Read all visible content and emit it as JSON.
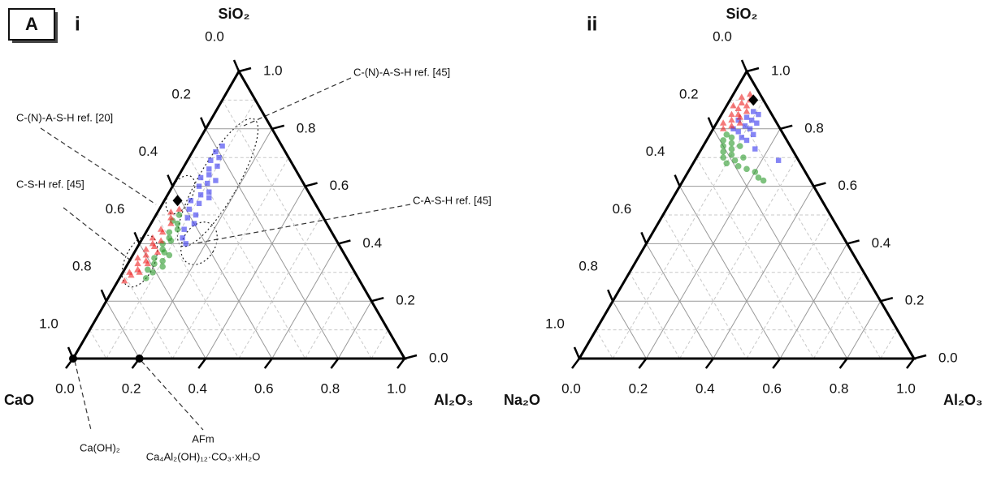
{
  "panel": "A",
  "chart_data": [
    {
      "type": "ternary",
      "label": "i",
      "top_label": "SiO₂",
      "left_label": "CaO",
      "right_label": "Al₂O₃",
      "left_ticks": [
        {
          "value": 0,
          "label": "0.0"
        },
        0.2,
        0.4,
        0.6,
        0.8,
        {
          "value": 1,
          "label": "1.0"
        }
      ],
      "right_ticks": [
        {
          "value": 0,
          "label": "0.0"
        },
        0.2,
        0.4,
        0.6,
        0.8,
        {
          "value": 1,
          "label": "1.0"
        }
      ],
      "bottom_ticks": [
        {
          "value": 0,
          "label": "0.0"
        },
        0.2,
        0.4,
        0.6,
        0.8,
        {
          "value": 1,
          "label": "1.0"
        }
      ],
      "grid": true,
      "annotations": [
        "C-(N)-A-S-H ref. [45]",
        "C-(N)-A-S-H ref. [20]",
        "C-S-H ref. [45]",
        "C-A-S-H ref. [45]",
        "Ca(OH)₂",
        "AFm",
        "Ca₄Al₂(OH)₁₂·CO₃·xH₂O"
      ],
      "series": [
        {
          "color": "#3333ee",
          "marker": "square",
          "values": [
            [
              0.4,
              0.14
            ],
            [
              0.42,
              0.12
            ],
            [
              0.45,
              0.11
            ],
            [
              0.47,
              0.13
            ],
            [
              0.49,
              0.1
            ],
            [
              0.5,
              0.12
            ],
            [
              0.52,
              0.09
            ],
            [
              0.54,
              0.11
            ],
            [
              0.55,
              0.08
            ],
            [
              0.57,
              0.1
            ],
            [
              0.58,
              0.12
            ],
            [
              0.6,
              0.08
            ],
            [
              0.61,
              0.1
            ],
            [
              0.63,
              0.07
            ],
            [
              0.64,
              0.09
            ],
            [
              0.66,
              0.08
            ],
            [
              0.67,
              0.1
            ],
            [
              0.69,
              0.07
            ],
            [
              0.7,
              0.09
            ],
            [
              0.72,
              0.07
            ],
            [
              0.74,
              0.08
            ],
            [
              0.62,
              0.12
            ],
            [
              0.56,
              0.13
            ]
          ]
        },
        {
          "color": "#2a9a2a",
          "marker": "circle",
          "values": [
            [
              0.28,
              0.08
            ],
            [
              0.3,
              0.09
            ],
            [
              0.31,
              0.07
            ],
            [
              0.33,
              0.08
            ],
            [
              0.34,
              0.1
            ],
            [
              0.35,
              0.07
            ],
            [
              0.37,
              0.09
            ],
            [
              0.38,
              0.08
            ],
            [
              0.4,
              0.07
            ],
            [
              0.41,
              0.09
            ],
            [
              0.42,
              0.08
            ],
            [
              0.44,
              0.07
            ],
            [
              0.45,
              0.09
            ],
            [
              0.47,
              0.08
            ],
            [
              0.48,
              0.06
            ],
            [
              0.5,
              0.07
            ],
            [
              0.36,
              0.11
            ],
            [
              0.32,
              0.11
            ]
          ]
        },
        {
          "color": "#ee2222",
          "marker": "triangle",
          "values": [
            [
              0.27,
              0.02
            ],
            [
              0.29,
              0.03
            ],
            [
              0.3,
              0.02
            ],
            [
              0.31,
              0.04
            ],
            [
              0.33,
              0.03
            ],
            [
              0.34,
              0.05
            ],
            [
              0.35,
              0.02
            ],
            [
              0.36,
              0.04
            ],
            [
              0.38,
              0.03
            ],
            [
              0.39,
              0.05
            ],
            [
              0.4,
              0.04
            ],
            [
              0.41,
              0.06
            ],
            [
              0.42,
              0.03
            ],
            [
              0.44,
              0.05
            ],
            [
              0.45,
              0.04
            ],
            [
              0.47,
              0.06
            ],
            [
              0.49,
              0.05
            ],
            [
              0.51,
              0.04
            ],
            [
              0.52,
              0.06
            ],
            [
              0.3,
              0.05
            ],
            [
              0.33,
              0.06
            ],
            [
              0.37,
              0.07
            ]
          ]
        },
        {
          "color": "#000000",
          "marker": "diamond",
          "values": [
            [
              0.55,
              0.04
            ]
          ]
        },
        {
          "color": "#000000",
          "marker": "dot",
          "values": [
            [
              0,
              0
            ],
            [
              0,
              0.2
            ]
          ]
        }
      ]
    },
    {
      "type": "ternary",
      "label": "ii",
      "top_label": "SiO₂",
      "left_label": "Na₂O",
      "right_label": "Al₂O₃",
      "left_ticks": [
        {
          "value": 0,
          "label": "0.0"
        },
        0.2,
        0.4,
        0.6,
        0.8,
        {
          "value": 1,
          "label": "1.0"
        }
      ],
      "right_ticks": [
        {
          "value": 0,
          "label": "0.0"
        },
        0.2,
        0.4,
        0.6,
        0.8,
        {
          "value": 1,
          "label": "1.0"
        }
      ],
      "bottom_ticks": [
        {
          "value": 0,
          "label": "0.0"
        },
        0.2,
        0.4,
        0.6,
        0.8,
        {
          "value": 1,
          "label": "1.0"
        }
      ],
      "grid": true,
      "series": [
        {
          "color": "#2a9a2a",
          "marker": "circle",
          "values": [
            [
              0.78,
              0.05
            ],
            [
              0.77,
              0.07
            ],
            [
              0.76,
              0.05
            ],
            [
              0.75,
              0.08
            ],
            [
              0.74,
              0.06
            ],
            [
              0.73,
              0.09
            ],
            [
              0.72,
              0.07
            ],
            [
              0.71,
              0.1
            ],
            [
              0.7,
              0.08
            ],
            [
              0.69,
              0.12
            ],
            [
              0.68,
              0.1
            ],
            [
              0.67,
              0.14
            ],
            [
              0.66,
              0.17
            ],
            [
              0.65,
              0.2
            ],
            [
              0.63,
              0.22
            ],
            [
              0.62,
              0.24
            ],
            [
              0.7,
              0.14
            ],
            [
              0.74,
              0.11
            ]
          ]
        },
        {
          "color": "#3333ee",
          "marker": "square",
          "values": [
            [
              0.86,
              0.09
            ],
            [
              0.85,
              0.11
            ],
            [
              0.84,
              0.08
            ],
            [
              0.83,
              0.1
            ],
            [
              0.82,
              0.12
            ],
            [
              0.81,
              0.09
            ],
            [
              0.8,
              0.11
            ],
            [
              0.79,
              0.08
            ],
            [
              0.78,
              0.13
            ],
            [
              0.77,
              0.1
            ],
            [
              0.76,
              0.12
            ],
            [
              0.73,
              0.16
            ],
            [
              0.83,
              0.06
            ],
            [
              0.8,
              0.06
            ],
            [
              0.69,
              0.25
            ]
          ]
        },
        {
          "color": "#ee2222",
          "marker": "triangle",
          "values": [
            [
              0.92,
              0.05
            ],
            [
              0.91,
              0.03
            ],
            [
              0.9,
              0.06
            ],
            [
              0.89,
              0.04
            ],
            [
              0.88,
              0.02
            ],
            [
              0.88,
              0.06
            ],
            [
              0.87,
              0.04
            ],
            [
              0.86,
              0.07
            ],
            [
              0.85,
              0.03
            ],
            [
              0.85,
              0.05
            ],
            [
              0.84,
              0.06
            ],
            [
              0.83,
              0.04
            ],
            [
              0.82,
              0.02
            ],
            [
              0.82,
              0.07
            ],
            [
              0.81,
              0.05
            ],
            [
              0.8,
              0.03
            ]
          ]
        },
        {
          "color": "#000000",
          "marker": "diamond",
          "values": [
            [
              0.9,
              0.07
            ]
          ]
        }
      ]
    }
  ]
}
